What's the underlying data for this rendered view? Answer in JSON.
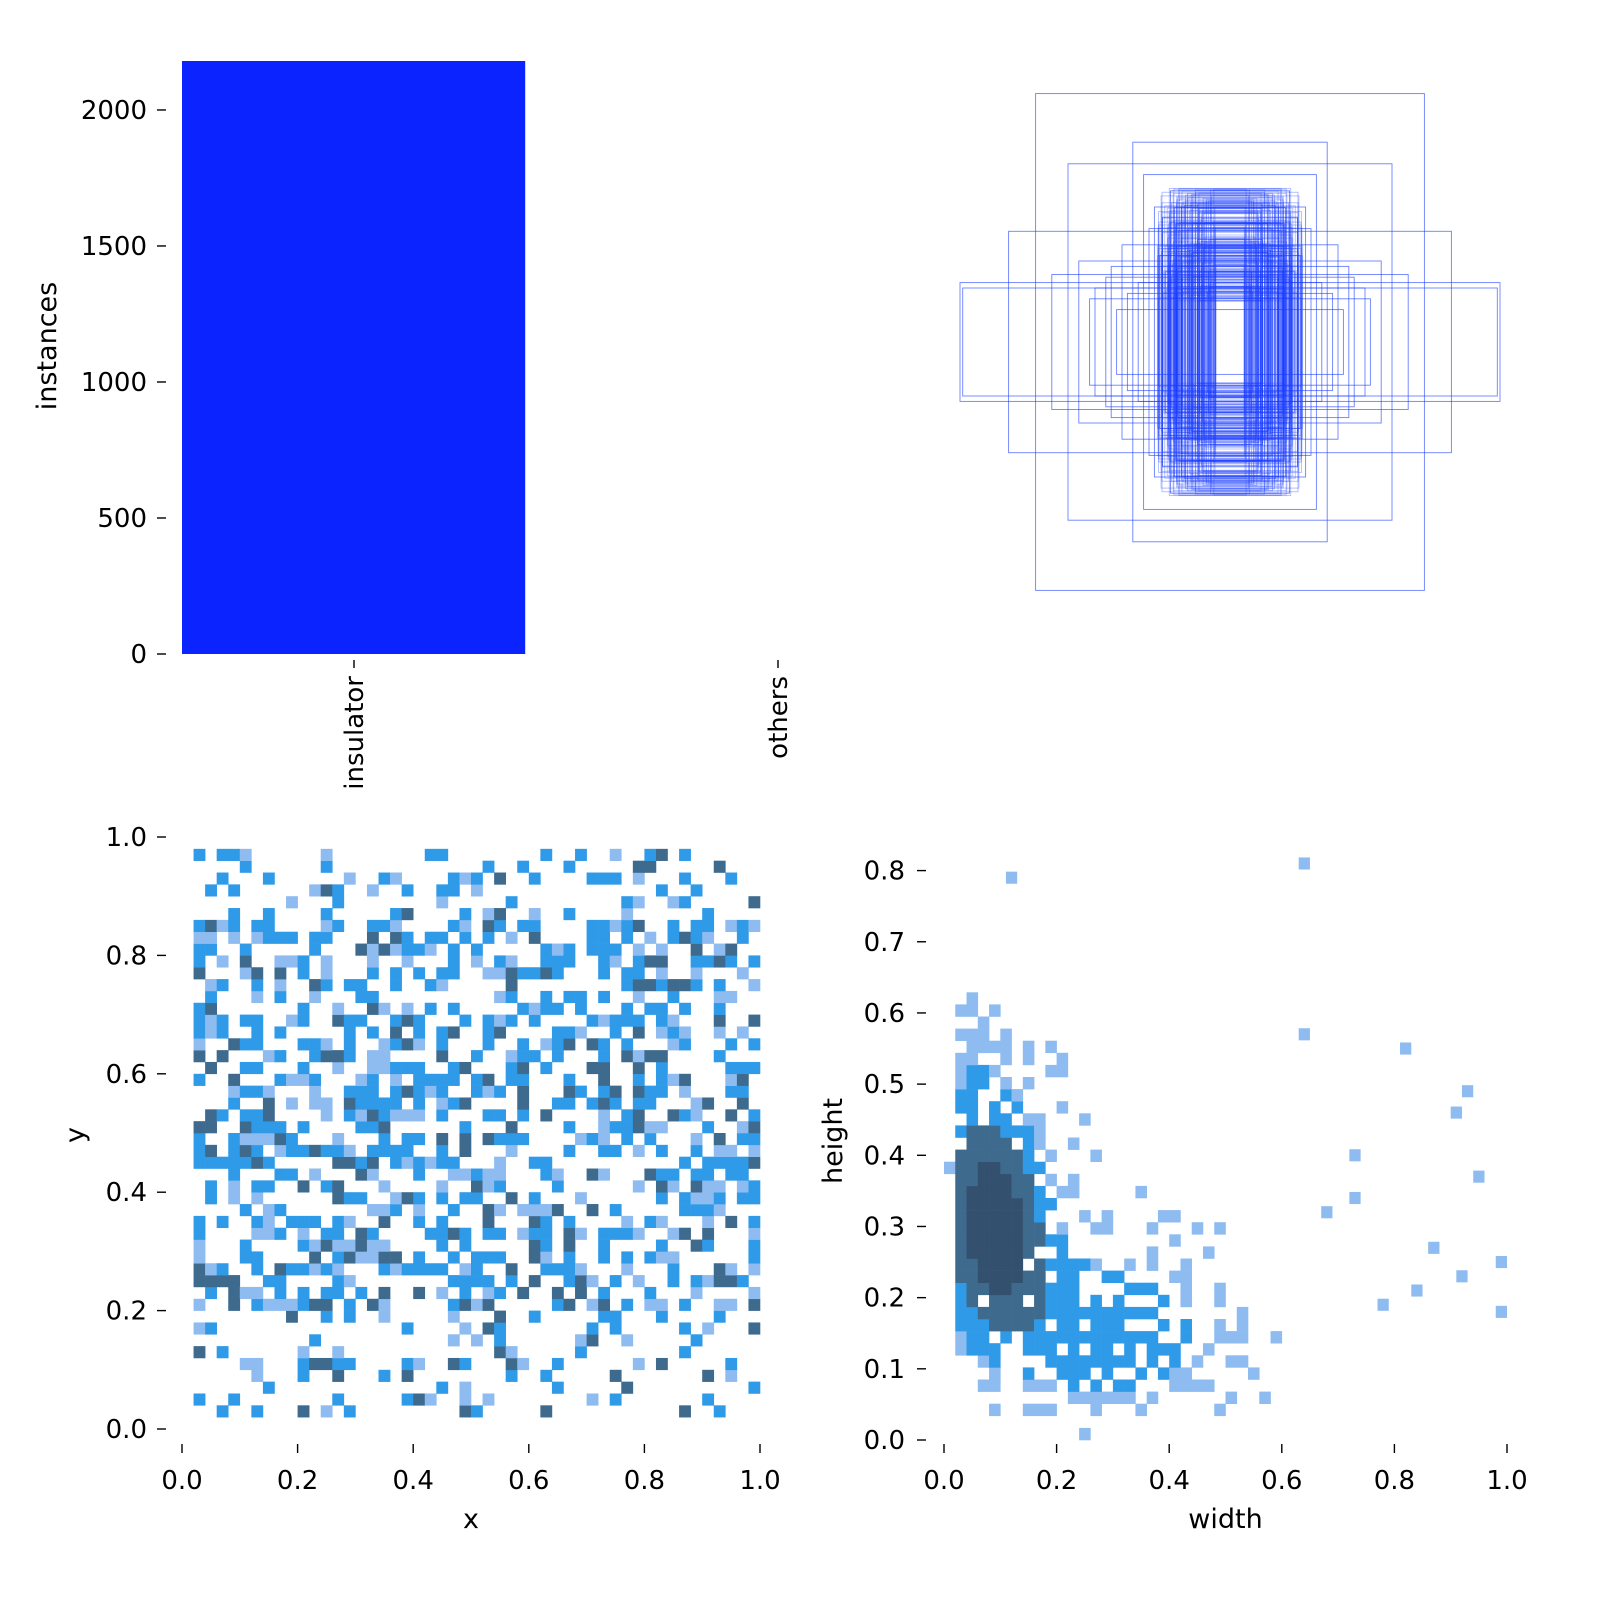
{
  "chart_data": [
    {
      "type": "bar",
      "categories": [
        "insulator",
        "others"
      ],
      "values": [
        2180,
        0
      ],
      "ylabel": "instances",
      "xlabel": "",
      "ylim": [
        0,
        2180
      ],
      "yticks": [
        0,
        500,
        1000,
        1500,
        2000
      ],
      "bar_color": "#0a23ff",
      "grid": false
    },
    {
      "type": "other",
      "description_kind": "overlaid bounding boxes (centered)",
      "color": "#1a3cff",
      "xlim": [
        0,
        1
      ],
      "ylim": [
        0,
        1
      ],
      "boxes": [
        {
          "w": 0.72,
          "h": 0.92
        },
        {
          "w": 0.82,
          "h": 0.41
        },
        {
          "w": 1.0,
          "h": 0.22
        },
        {
          "w": 0.99,
          "h": 0.2
        },
        {
          "w": 0.6,
          "h": 0.66
        },
        {
          "w": 0.36,
          "h": 0.74
        },
        {
          "w": 0.32,
          "h": 0.62
        },
        {
          "w": 0.28,
          "h": 0.5
        },
        {
          "w": 0.25,
          "h": 0.46
        },
        {
          "w": 0.66,
          "h": 0.25
        },
        {
          "w": 0.56,
          "h": 0.3
        },
        {
          "w": 0.5,
          "h": 0.2
        },
        {
          "w": 0.44,
          "h": 0.28
        },
        {
          "w": 0.4,
          "h": 0.36
        },
        {
          "w": 0.22,
          "h": 0.56
        },
        {
          "w": 0.2,
          "h": 0.44
        },
        {
          "w": 0.18,
          "h": 0.5
        },
        {
          "w": 0.3,
          "h": 0.42
        },
        {
          "w": 0.46,
          "h": 0.24
        },
        {
          "w": 0.52,
          "h": 0.16
        },
        {
          "w": 0.12,
          "h": 0.38
        },
        {
          "w": 0.15,
          "h": 0.34
        },
        {
          "w": 0.1,
          "h": 0.3
        },
        {
          "w": 0.08,
          "h": 0.26
        },
        {
          "w": 0.26,
          "h": 0.32
        },
        {
          "w": 0.34,
          "h": 0.22
        },
        {
          "w": 0.38,
          "h": 0.18
        },
        {
          "w": 0.42,
          "h": 0.12
        },
        {
          "w": 0.14,
          "h": 0.44
        },
        {
          "w": 0.24,
          "h": 0.26
        }
      ]
    },
    {
      "type": "heatmap",
      "xlabel": "x",
      "ylabel": "y",
      "xlim": [
        0,
        1
      ],
      "ylim": [
        0,
        1
      ],
      "xticks": [
        0.0,
        0.2,
        0.4,
        0.6,
        0.8,
        1.0
      ],
      "yticks": [
        0.0,
        0.2,
        0.4,
        0.6,
        0.8,
        1.0
      ],
      "bins": 50,
      "x_range": [
        0.02,
        0.98
      ],
      "y_range": [
        0.02,
        0.97
      ],
      "description_kind": "2D histogram of box centers, roughly uniform, denser between 0.1 and 0.9"
    },
    {
      "type": "heatmap",
      "xlabel": "width",
      "ylabel": "height",
      "xlim": [
        0,
        1
      ],
      "ylim": [
        0,
        0.85
      ],
      "xticks": [
        0.0,
        0.2,
        0.4,
        0.6,
        0.8,
        1.0
      ],
      "yticks": [
        0.0,
        0.1,
        0.2,
        0.3,
        0.4,
        0.5,
        0.6,
        0.7,
        0.8
      ],
      "bins": 50,
      "description_kind": "2D histogram of box sizes, densest near width 0.05–0.15, height 0.2–0.4",
      "peak": {
        "width": 0.08,
        "height": 0.3
      },
      "outliers": [
        {
          "width": 0.12,
          "height": 0.79
        },
        {
          "width": 0.64,
          "height": 0.81
        },
        {
          "width": 0.64,
          "height": 0.57
        },
        {
          "width": 0.82,
          "height": 0.55
        },
        {
          "width": 0.93,
          "height": 0.49
        },
        {
          "width": 0.91,
          "height": 0.46
        },
        {
          "width": 0.95,
          "height": 0.37
        },
        {
          "width": 0.73,
          "height": 0.4
        },
        {
          "width": 0.73,
          "height": 0.34
        },
        {
          "width": 0.68,
          "height": 0.32
        },
        {
          "width": 0.87,
          "height": 0.27
        },
        {
          "width": 0.99,
          "height": 0.25
        },
        {
          "width": 0.99,
          "height": 0.18
        },
        {
          "width": 0.92,
          "height": 0.23
        },
        {
          "width": 0.84,
          "height": 0.21
        },
        {
          "width": 0.78,
          "height": 0.19
        }
      ]
    }
  ],
  "colors": {
    "hist_light": "#8ebcf0",
    "hist_mid": "#2f9be8",
    "hist_dark": "#3e6a8e",
    "hist_darkest": "#33506f"
  }
}
